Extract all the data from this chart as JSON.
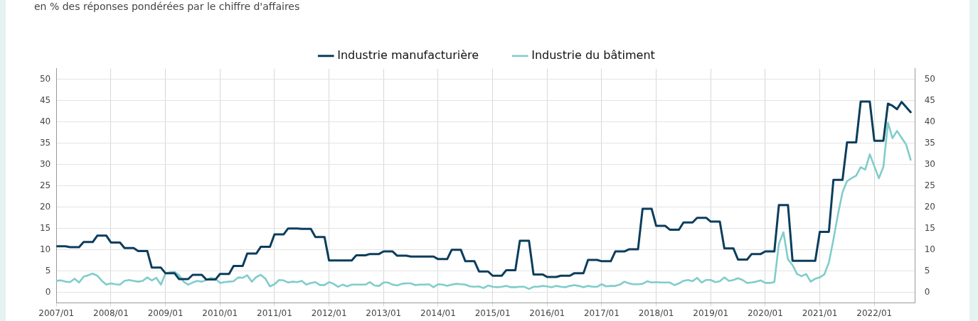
{
  "chart_data": {
    "type": "line",
    "title": "en % des réponses pondérées par le chiffre d'affaires",
    "x": [
      "2007-01",
      "2007-02",
      "2007-03",
      "2007-04",
      "2007-05",
      "2007-06",
      "2007-07",
      "2007-08",
      "2007-09",
      "2007-10",
      "2007-11",
      "2007-12",
      "2008-01",
      "2008-02",
      "2008-03",
      "2008-04",
      "2008-05",
      "2008-06",
      "2008-07",
      "2008-08",
      "2008-09",
      "2008-10",
      "2008-11",
      "2008-12",
      "2009-01",
      "2009-02",
      "2009-03",
      "2009-04",
      "2009-05",
      "2009-06",
      "2009-07",
      "2009-08",
      "2009-09",
      "2009-10",
      "2009-11",
      "2009-12",
      "2010-01",
      "2010-02",
      "2010-03",
      "2010-04",
      "2010-05",
      "2010-06",
      "2010-07",
      "2010-08",
      "2010-09",
      "2010-10",
      "2010-11",
      "2010-12",
      "2011-01",
      "2011-02",
      "2011-03",
      "2011-04",
      "2011-05",
      "2011-06",
      "2011-07",
      "2011-08",
      "2011-09",
      "2011-10",
      "2011-11",
      "2011-12",
      "2012-01",
      "2012-02",
      "2012-03",
      "2012-04",
      "2012-05",
      "2012-06",
      "2012-07",
      "2012-08",
      "2012-09",
      "2012-10",
      "2012-11",
      "2012-12",
      "2013-01",
      "2013-02",
      "2013-03",
      "2013-04",
      "2013-05",
      "2013-06",
      "2013-07",
      "2013-08",
      "2013-09",
      "2013-10",
      "2013-11",
      "2013-12",
      "2014-01",
      "2014-02",
      "2014-03",
      "2014-04",
      "2014-05",
      "2014-06",
      "2014-07",
      "2014-08",
      "2014-09",
      "2014-10",
      "2014-11",
      "2014-12",
      "2015-01",
      "2015-02",
      "2015-03",
      "2015-04",
      "2015-05",
      "2015-06",
      "2015-07",
      "2015-08",
      "2015-09",
      "2015-10",
      "2015-11",
      "2015-12",
      "2016-01",
      "2016-02",
      "2016-03",
      "2016-04",
      "2016-05",
      "2016-06",
      "2016-07",
      "2016-08",
      "2016-09",
      "2016-10",
      "2016-11",
      "2016-12",
      "2017-01",
      "2017-02",
      "2017-03",
      "2017-04",
      "2017-05",
      "2017-06",
      "2017-07",
      "2017-08",
      "2017-09",
      "2017-10",
      "2017-11",
      "2017-12",
      "2018-01",
      "2018-02",
      "2018-03",
      "2018-04",
      "2018-05",
      "2018-06",
      "2018-07",
      "2018-08",
      "2018-09",
      "2018-10",
      "2018-11",
      "2018-12",
      "2019-01",
      "2019-02",
      "2019-03",
      "2019-04",
      "2019-05",
      "2019-06",
      "2019-07",
      "2019-08",
      "2019-09",
      "2019-10",
      "2019-11",
      "2019-12",
      "2020-01",
      "2020-02",
      "2020-03",
      "2020-04",
      "2020-05",
      "2020-06",
      "2020-07",
      "2020-08",
      "2020-09",
      "2020-10",
      "2020-11",
      "2020-12",
      "2021-01",
      "2021-02",
      "2021-03",
      "2021-04",
      "2021-05",
      "2021-06",
      "2021-07",
      "2021-08",
      "2021-09",
      "2021-10",
      "2021-11",
      "2021-12",
      "2022-01",
      "2022-02",
      "2022-03",
      "2022-04",
      "2022-05",
      "2022-06",
      "2022-07",
      "2022-08",
      "2022-09"
    ],
    "series": [
      {
        "name": "Industrie manufacturière",
        "color": "#0b3d5c",
        "values": [
          10.8,
          10.8,
          10.8,
          10.6,
          10.6,
          10.6,
          11.8,
          11.8,
          11.8,
          13.3,
          13.3,
          13.3,
          11.7,
          11.7,
          11.7,
          10.4,
          10.4,
          10.4,
          9.7,
          9.7,
          9.7,
          5.8,
          5.8,
          5.8,
          4.5,
          4.5,
          4.5,
          3.1,
          3.1,
          3.1,
          4.1,
          4.1,
          4.1,
          3.0,
          3.0,
          3.0,
          4.3,
          4.3,
          4.3,
          6.2,
          6.2,
          6.2,
          9.1,
          9.1,
          9.1,
          10.7,
          10.7,
          10.7,
          13.6,
          13.6,
          13.6,
          15.0,
          15.0,
          15.0,
          14.9,
          14.9,
          14.9,
          13.0,
          13.0,
          13.0,
          7.5,
          7.5,
          7.5,
          7.5,
          7.5,
          7.5,
          8.7,
          8.7,
          8.7,
          9.0,
          9.0,
          9.0,
          9.6,
          9.6,
          9.6,
          8.6,
          8.6,
          8.6,
          8.4,
          8.4,
          8.4,
          8.4,
          8.4,
          8.4,
          7.8,
          7.8,
          7.8,
          10.0,
          10.0,
          10.0,
          7.3,
          7.3,
          7.3,
          4.9,
          4.9,
          4.9,
          3.9,
          3.9,
          3.9,
          5.2,
          5.2,
          5.2,
          12.1,
          12.1,
          12.1,
          4.2,
          4.2,
          4.2,
          3.6,
          3.6,
          3.6,
          3.9,
          3.9,
          3.9,
          4.5,
          4.5,
          4.5,
          7.6,
          7.6,
          7.6,
          7.3,
          7.3,
          7.3,
          9.6,
          9.6,
          9.6,
          10.1,
          10.1,
          10.1,
          19.6,
          19.6,
          19.6,
          15.6,
          15.6,
          15.6,
          14.7,
          14.7,
          14.7,
          16.4,
          16.4,
          16.4,
          17.5,
          17.5,
          17.5,
          16.6,
          16.6,
          16.6,
          10.3,
          10.3,
          10.3,
          7.7,
          7.7,
          7.7,
          9.0,
          9.0,
          9.0,
          9.6,
          9.6,
          9.6,
          20.5,
          20.5,
          20.5,
          7.4,
          7.4,
          7.4,
          7.4,
          7.4,
          7.4,
          14.2,
          14.2,
          14.2,
          26.4,
          26.4,
          26.4,
          35.2,
          35.2,
          35.2,
          44.8,
          44.8,
          44.8,
          35.6,
          35.6,
          35.6,
          44.3,
          43.8,
          43.0,
          44.7,
          43.5,
          42.3
        ]
      },
      {
        "name": "Industrie du bâtiment",
        "color": "#7fcdcb",
        "values": [
          2.7,
          2.8,
          2.5,
          2.4,
          3.2,
          2.3,
          3.7,
          4.0,
          4.4,
          3.9,
          2.7,
          1.8,
          2.1,
          1.9,
          1.8,
          2.7,
          2.9,
          2.7,
          2.5,
          2.7,
          3.5,
          2.8,
          3.4,
          1.8,
          4.4,
          4.7,
          4.8,
          4.0,
          2.5,
          1.8,
          2.3,
          2.7,
          2.5,
          2.9,
          3.4,
          3.2,
          2.2,
          2.4,
          2.5,
          2.6,
          3.5,
          3.4,
          4.0,
          2.5,
          3.6,
          4.1,
          3.2,
          1.4,
          1.9,
          2.9,
          2.8,
          2.3,
          2.5,
          2.4,
          2.7,
          1.8,
          2.2,
          2.4,
          1.7,
          1.7,
          2.4,
          2.0,
          1.3,
          1.8,
          1.4,
          1.8,
          1.8,
          1.8,
          1.8,
          2.4,
          1.6,
          1.5,
          2.3,
          2.3,
          1.8,
          1.6,
          2.0,
          2.1,
          2.1,
          1.7,
          1.8,
          1.8,
          1.9,
          1.2,
          1.9,
          1.8,
          1.5,
          1.8,
          2.0,
          1.9,
          1.8,
          1.4,
          1.3,
          1.4,
          1.0,
          1.6,
          1.3,
          1.2,
          1.3,
          1.5,
          1.2,
          1.2,
          1.3,
          1.3,
          0.8,
          1.3,
          1.3,
          1.5,
          1.4,
          1.2,
          1.5,
          1.3,
          1.2,
          1.5,
          1.7,
          1.5,
          1.2,
          1.5,
          1.3,
          1.3,
          1.9,
          1.4,
          1.5,
          1.5,
          1.8,
          2.5,
          2.1,
          1.9,
          1.9,
          2.0,
          2.6,
          2.3,
          2.4,
          2.3,
          2.3,
          2.3,
          1.7,
          2.1,
          2.7,
          2.9,
          2.6,
          3.4,
          2.3,
          2.9,
          2.9,
          2.4,
          2.6,
          3.5,
          2.7,
          2.9,
          3.3,
          2.9,
          2.2,
          2.3,
          2.5,
          2.8,
          2.2,
          2.2,
          2.4,
          11.4,
          14.1,
          7.7,
          6.4,
          4.3,
          3.8,
          4.3,
          2.5,
          3.2,
          3.5,
          4.2,
          7.0,
          12.4,
          18.3,
          23.5,
          26.1,
          26.8,
          27.4,
          29.4,
          28.8,
          32.4,
          29.6,
          26.8,
          29.5,
          39.8,
          36.2,
          37.9,
          36.3,
          34.7,
          31.1
        ]
      }
    ],
    "xlim": [
      "2007-01",
      "2022-10"
    ],
    "xticks": [
      {
        "value": "2007-01",
        "label": "2007/01"
      },
      {
        "value": "2008-01",
        "label": "2008/01"
      },
      {
        "value": "2009-01",
        "label": "2009/01"
      },
      {
        "value": "2010-01",
        "label": "2010/01"
      },
      {
        "value": "2011-01",
        "label": "2011/01"
      },
      {
        "value": "2012-01",
        "label": "2012/01"
      },
      {
        "value": "2013-01",
        "label": "2013/01"
      },
      {
        "value": "2014-01",
        "label": "2014/01"
      },
      {
        "value": "2015-01",
        "label": "2015/01"
      },
      {
        "value": "2016-01",
        "label": "2016/01"
      },
      {
        "value": "2017-01",
        "label": "2017/01"
      },
      {
        "value": "2018-01",
        "label": "2018/01"
      },
      {
        "value": "2019-01",
        "label": "2019/01"
      },
      {
        "value": "2020-01",
        "label": "2020/01"
      },
      {
        "value": "2021-01",
        "label": "2021/01"
      },
      {
        "value": "2022-01",
        "label": "2022/01"
      }
    ],
    "ylim": [
      -2.5,
      52.5
    ],
    "yticks": [
      0,
      5,
      10,
      15,
      20,
      25,
      30,
      35,
      40,
      45,
      50
    ],
    "y2lim": [
      -2.5,
      52.5
    ],
    "y2ticks": [
      0,
      5,
      10,
      15,
      20,
      25,
      30,
      35,
      40,
      45,
      50
    ],
    "grid": true,
    "legend": "top"
  }
}
